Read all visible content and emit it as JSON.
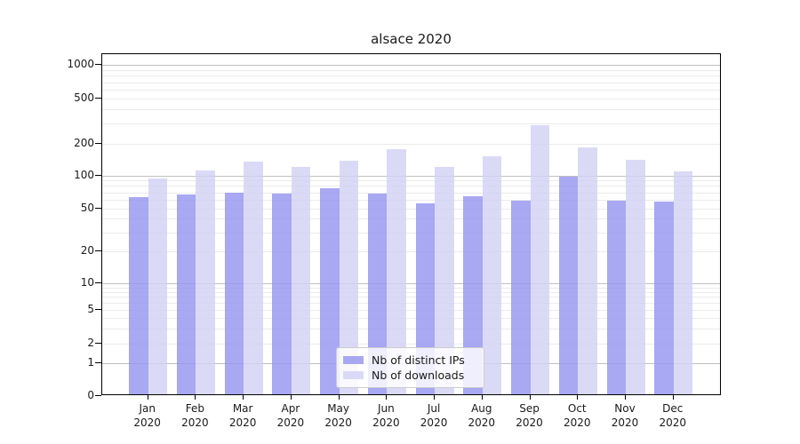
{
  "figure": {
    "title": "alsace 2020"
  },
  "chart_data": {
    "type": "bar",
    "title": "alsace 2020",
    "y_scale": "symlog",
    "grid": true,
    "legend_position": "lower center",
    "ylim": [
      0,
      1300
    ],
    "y_ticks": [
      0,
      1,
      2,
      5,
      10,
      20,
      50,
      100,
      200,
      500,
      1000
    ],
    "y_tick_labels": [
      "0",
      "1",
      "2",
      "5",
      "10",
      "20",
      "50",
      "100",
      "200",
      "500",
      "1000"
    ],
    "categories": [
      {
        "month": "Jan",
        "year": "2020"
      },
      {
        "month": "Feb",
        "year": "2020"
      },
      {
        "month": "Mar",
        "year": "2020"
      },
      {
        "month": "Apr",
        "year": "2020"
      },
      {
        "month": "May",
        "year": "2020"
      },
      {
        "month": "Jun",
        "year": "2020"
      },
      {
        "month": "Jul",
        "year": "2020"
      },
      {
        "month": "Aug",
        "year": "2020"
      },
      {
        "month": "Sep",
        "year": "2020"
      },
      {
        "month": "Oct",
        "year": "2020"
      },
      {
        "month": "Nov",
        "year": "2020"
      },
      {
        "month": "Dec",
        "year": "2020"
      }
    ],
    "series": [
      {
        "name": "Nb of distinct IPs",
        "color": "#a8a8f2",
        "fill": "rgba(146,146,240,0.8)",
        "values": [
          61,
          64,
          67,
          66,
          73,
          66,
          53,
          62,
          56,
          93,
          56,
          55
        ]
      },
      {
        "name": "Nb of downloads",
        "color": "#dadaf7",
        "fill": "rgba(209,209,245,0.8)",
        "values": [
          91,
          108,
          130,
          115,
          131,
          170,
          115,
          145,
          281,
          178,
          136,
          104
        ]
      }
    ]
  },
  "colors": {
    "grid_major": "#c0c0c0",
    "grid_minor": "#ebebeb",
    "spine": "#000000",
    "background": "#ffffff"
  }
}
